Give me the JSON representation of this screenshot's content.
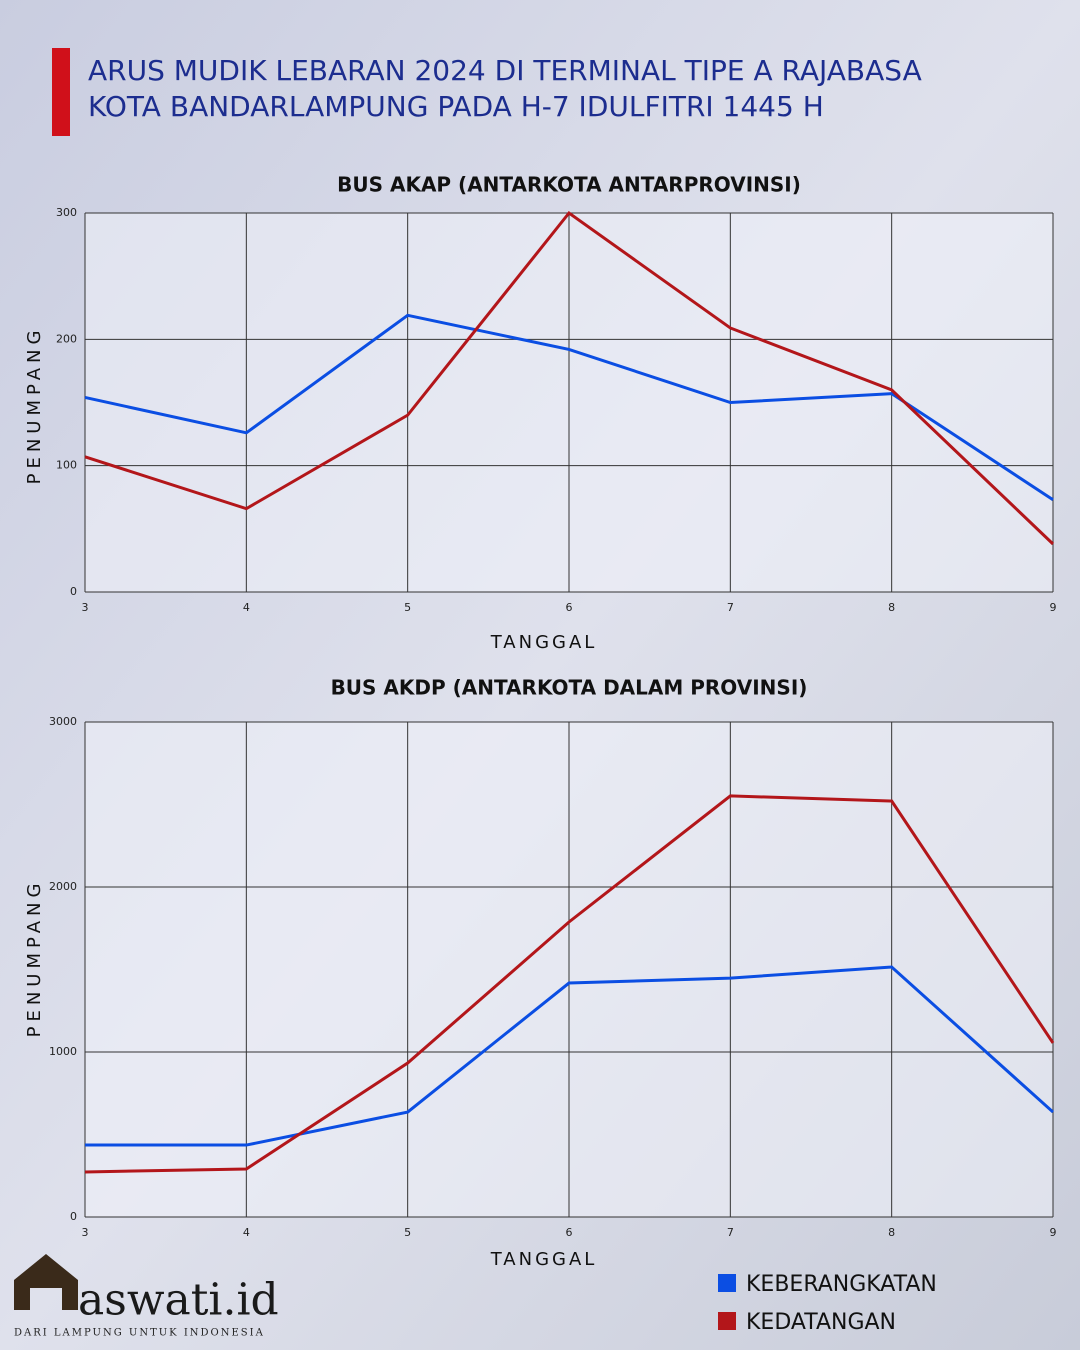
{
  "title": [
    "ARUS MUDIK LEBARAN 2024 DI TERMINAL TIPE A RAJABASA",
    "KOTA BANDARLAMPUNG PADA H-7 IDULFITRI 1445 H"
  ],
  "chart_data": [
    {
      "type": "line",
      "title": "BUS AKAP (ANTARKOTA ANTARPROVINSI)",
      "x_label": "TANGGAL",
      "y_label": "PENUMPANG",
      "x": [
        3,
        4,
        5,
        6,
        7,
        8,
        9
      ],
      "xlim": [
        3,
        9
      ],
      "xticks": [
        3,
        4,
        5,
        6,
        7,
        8,
        9
      ],
      "ylim": [
        0,
        300
      ],
      "yticks": [
        0,
        100,
        200,
        300
      ],
      "grid": true,
      "series": [
        {
          "name": "KEBERANGKATAN",
          "color": "#0b4ee3",
          "values": [
            154,
            126,
            219,
            192,
            150,
            157,
            73
          ]
        },
        {
          "name": "KEDATANGAN",
          "color": "#b3161a",
          "values": [
            107,
            66,
            140,
            300,
            209,
            160,
            38
          ]
        }
      ]
    },
    {
      "type": "line",
      "title": "BUS AKDP (ANTARKOTA DALAM PROVINSI)",
      "x_label": "TANGGAL",
      "y_label": "PENUMPANG",
      "x": [
        3,
        4,
        5,
        6,
        7,
        8,
        9
      ],
      "xlim": [
        3,
        9
      ],
      "xticks": [
        3,
        4,
        5,
        6,
        7,
        8,
        9
      ],
      "ylim": [
        0,
        3000
      ],
      "yticks": [
        0,
        1000,
        2000,
        3000
      ],
      "grid": true,
      "series": [
        {
          "name": "KEBERANGKATAN",
          "color": "#0b4ee3",
          "values": [
            436,
            436,
            636,
            1418,
            1448,
            1515,
            636
          ]
        },
        {
          "name": "KEDATANGAN",
          "color": "#b3161a",
          "values": [
            273,
            291,
            933,
            1788,
            2552,
            2521,
            1055
          ]
        }
      ]
    }
  ],
  "logo": {
    "name": "aswati.id",
    "tagline": "DARI LAMPUNG UNTUK INDONESIA"
  }
}
